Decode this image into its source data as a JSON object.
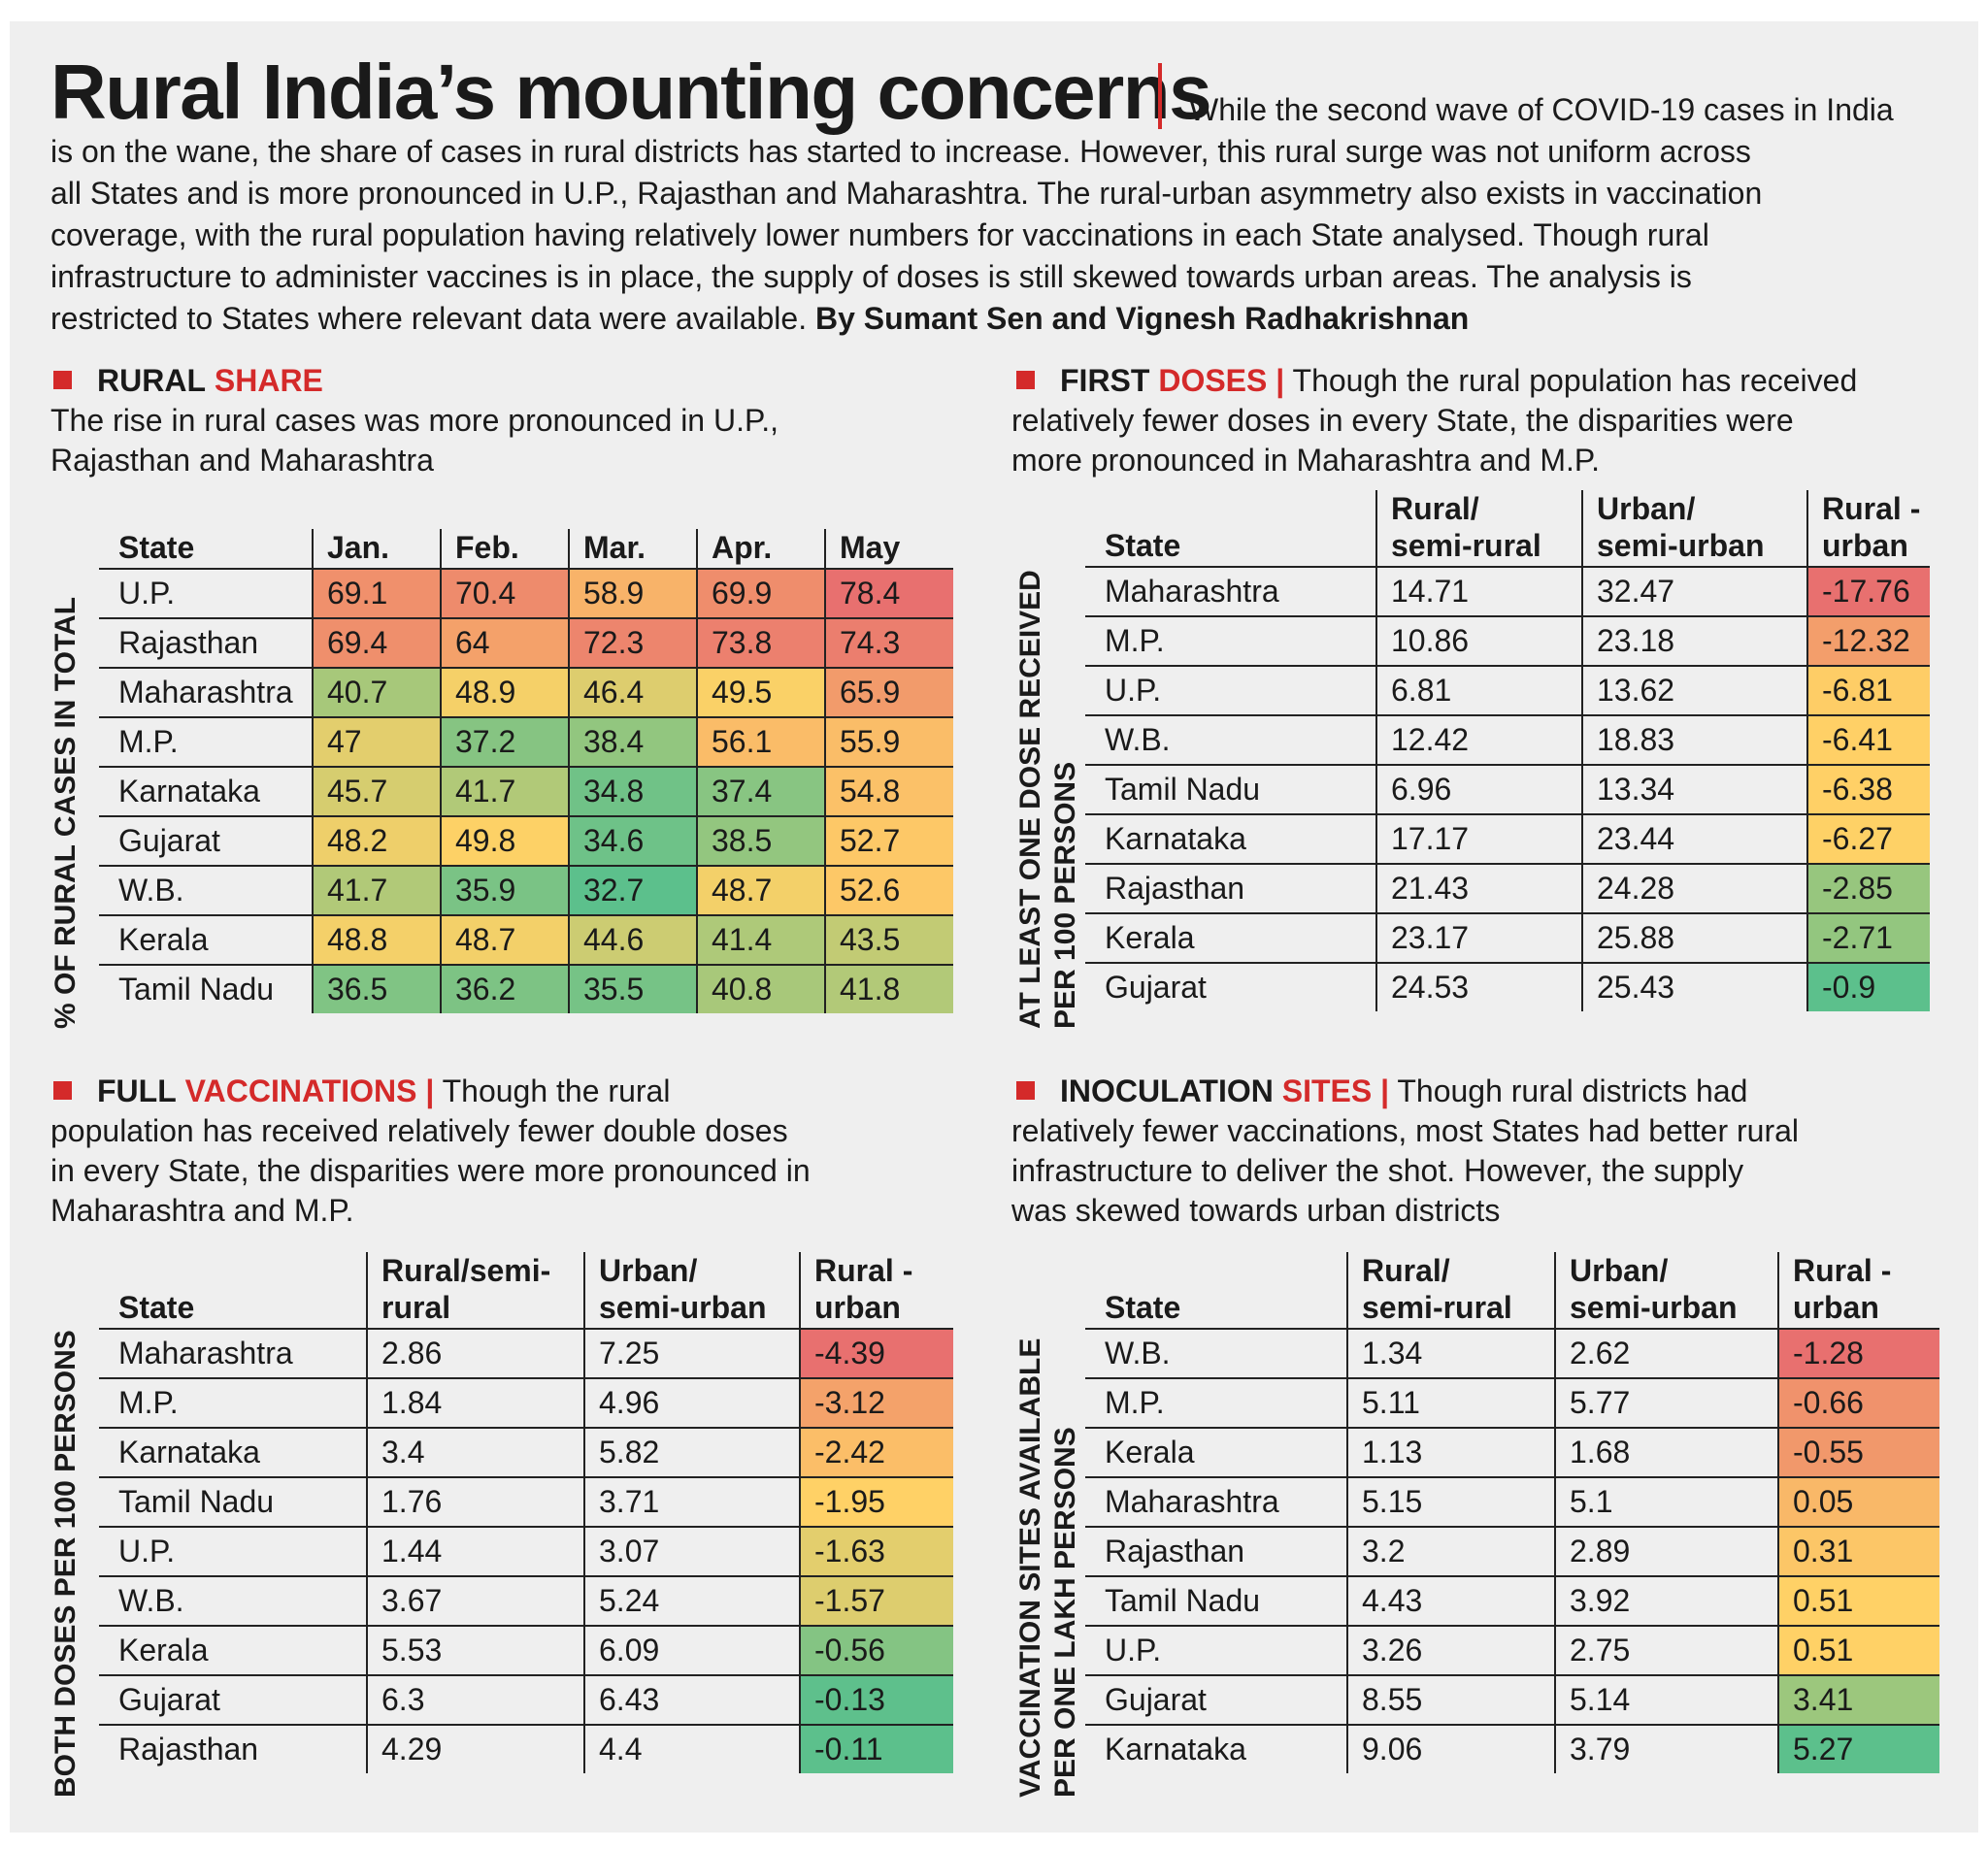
{
  "header": {
    "title": "Rural India’s mounting concerns",
    "intro_lines": [
      "is on the wane, the share of cases in rural districts has started to increase. However, this rural surge was not uniform across",
      "all States and is more pronounced in U.P., Rajasthan and Maharashtra. The rural-urban asymmetry also exists in vaccination",
      "coverage, with the rural population having relatively lower numbers for vaccinations in each State analysed. Though rural",
      "infrastructure to administer vaccines is in place, the supply of doses is still skewed towards urban areas. The analysis is"
    ],
    "intro_first": "While the second wave of COVID-19 cases in India",
    "intro_last": "restricted to States where relevant data were available.",
    "byline": "By Sumant Sen and Vignesh Radhakrishnan"
  },
  "colors": {
    "accent": "#d42a2a",
    "background": "#efefef",
    "scale_low": "#5cc08c",
    "scale_mid": "#ffd166",
    "scale_high": "#e8706f"
  },
  "chart_data": [
    {
      "type": "table",
      "id": "rural_share",
      "title_k1": "RURAL",
      "title_k2": "SHARE",
      "subtitle_lines": [
        "The rise in rural cases was more pronounced in U.P.,",
        "Rajasthan and Maharashtra"
      ],
      "ylabel_lines": [
        "% OF RURAL CASES IN TOTAL"
      ],
      "columns": [
        "State",
        "Jan.",
        "Feb.",
        "Mar.",
        "Apr.",
        "May"
      ],
      "rows": [
        [
          "U.P.",
          "69.1",
          "70.4",
          "58.9",
          "69.9",
          "78.4"
        ],
        [
          "Rajasthan",
          "69.4",
          "64",
          "72.3",
          "73.8",
          "74.3"
        ],
        [
          "Maharashtra",
          "40.7",
          "48.9",
          "46.4",
          "49.5",
          "65.9"
        ],
        [
          "M.P.",
          "47",
          "37.2",
          "38.4",
          "56.1",
          "55.9"
        ],
        [
          "Karnataka",
          "45.7",
          "41.7",
          "34.8",
          "37.4",
          "54.8"
        ],
        [
          "Gujarat",
          "48.2",
          "49.8",
          "34.6",
          "38.5",
          "52.7"
        ],
        [
          "W.B.",
          "41.7",
          "35.9",
          "32.7",
          "48.7",
          "52.6"
        ],
        [
          "Kerala",
          "48.8",
          "48.7",
          "44.6",
          "41.4",
          "43.5"
        ],
        [
          "Tamil Nadu",
          "36.5",
          "36.2",
          "35.5",
          "40.8",
          "41.8"
        ]
      ],
      "color_scale": [
        32.7,
        50,
        78.4
      ]
    },
    {
      "type": "table",
      "id": "first_doses",
      "title_k1": "FIRST",
      "title_k2": "DOSES",
      "subtitle_lines": [
        "Though the rural population has received",
        "relatively fewer doses in every State, the disparities were",
        "more pronounced in Maharashtra and M.P."
      ],
      "ylabel_lines": [
        "AT LEAST ONE DOSE RECEIVED",
        "PER 100 PERSONS"
      ],
      "columns": [
        "State",
        "Rural/\nsemi-rural",
        "Urban/\nsemi-urban",
        "Rural -\nurban"
      ],
      "rows": [
        [
          "Maharashtra",
          "14.71",
          "32.47",
          "-17.76"
        ],
        [
          "M.P.",
          "10.86",
          "23.18",
          "-12.32"
        ],
        [
          "U.P.",
          "6.81",
          "13.62",
          "-6.81"
        ],
        [
          "W.B.",
          "12.42",
          "18.83",
          "-6.41"
        ],
        [
          "Tamil Nadu",
          "6.96",
          "13.34",
          "-6.38"
        ],
        [
          "Karnataka",
          "17.17",
          "23.44",
          "-6.27"
        ],
        [
          "Rajasthan",
          "21.43",
          "24.28",
          "-2.85"
        ],
        [
          "Kerala",
          "23.17",
          "25.88",
          "-2.71"
        ],
        [
          "Gujarat",
          "24.53",
          "25.43",
          "-0.9"
        ]
      ],
      "color_scale": [
        -0.9,
        -6.3,
        -17.76
      ]
    },
    {
      "type": "table",
      "id": "full_vaccinations",
      "title_k1": "FULL",
      "title_k2": "VACCINATIONS",
      "subtitle_lines": [
        "Though the rural",
        "population has received relatively fewer double doses",
        "in every State, the disparities were more pronounced in",
        "Maharashtra and M.P."
      ],
      "ylabel_lines": [
        "BOTH DOSES PER 100 PERSONS"
      ],
      "columns": [
        "State",
        "Rural/semi-\nrural",
        "Urban/\nsemi-urban",
        "Rural -\nurban"
      ],
      "rows": [
        [
          "Maharashtra",
          "2.86",
          "7.25",
          "-4.39"
        ],
        [
          "M.P.",
          "1.84",
          "4.96",
          "-3.12"
        ],
        [
          "Karnataka",
          "3.4",
          "5.82",
          "-2.42"
        ],
        [
          "Tamil Nadu",
          "1.76",
          "3.71",
          "-1.95"
        ],
        [
          "U.P.",
          "1.44",
          "3.07",
          "-1.63"
        ],
        [
          "W.B.",
          "3.67",
          "5.24",
          "-1.57"
        ],
        [
          "Kerala",
          "5.53",
          "6.09",
          "-0.56"
        ],
        [
          "Gujarat",
          "6.3",
          "6.43",
          "-0.13"
        ],
        [
          "Rajasthan",
          "4.29",
          "4.4",
          "-0.11"
        ]
      ],
      "color_scale": [
        -0.11,
        -1.95,
        -4.39
      ]
    },
    {
      "type": "table",
      "id": "inoculation_sites",
      "title_k1": "INOCULATION",
      "title_k2": "SITES",
      "subtitle_lines": [
        "Though rural districts had",
        "relatively fewer vaccinations, most States had better rural",
        "infrastructure to deliver the shot. However, the supply",
        "was skewed towards urban districts"
      ],
      "ylabel_lines": [
        "VACCINATION SITES AVAILABLE",
        "PER ONE LAKH PERSONS"
      ],
      "columns": [
        "State",
        "Rural/\nsemi-rural",
        "Urban/\nsemi-urban",
        "Rural -\nurban"
      ],
      "rows": [
        [
          "W.B.",
          "1.34",
          "2.62",
          "-1.28"
        ],
        [
          "M.P.",
          "5.11",
          "5.77",
          "-0.66"
        ],
        [
          "Kerala",
          "1.13",
          "1.68",
          "-0.55"
        ],
        [
          "Maharashtra",
          "5.15",
          "5.1",
          "0.05"
        ],
        [
          "Rajasthan",
          "3.2",
          "2.89",
          "0.31"
        ],
        [
          "Tamil Nadu",
          "4.43",
          "3.92",
          "0.51"
        ],
        [
          "U.P.",
          "3.26",
          "2.75",
          "0.51"
        ],
        [
          "Gujarat",
          "8.55",
          "5.14",
          "3.41"
        ],
        [
          "Karnataka",
          "9.06",
          "3.79",
          "5.27"
        ]
      ],
      "color_scale": [
        5.27,
        0.51,
        -1.28
      ]
    }
  ]
}
